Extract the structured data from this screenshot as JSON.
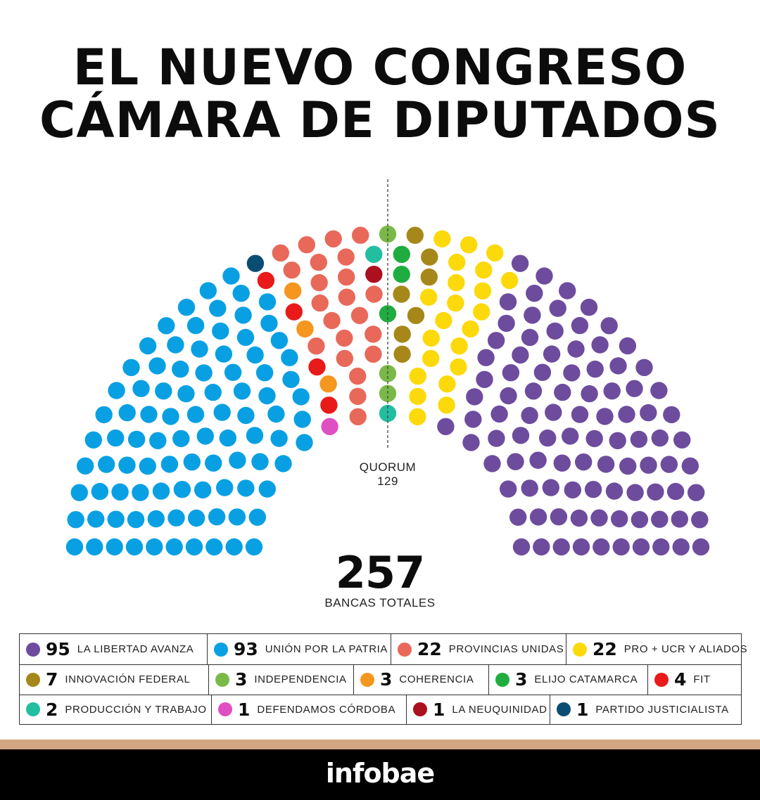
{
  "header": {
    "title_line1": "EL NUEVO CONGRESO",
    "title_line2": "CÁMARA DE DIPUTADOS"
  },
  "chart_data": {
    "type": "parliament",
    "total_seats": 257,
    "total_number": "257",
    "total_label": "BANCAS TOTALES",
    "quorum_label": "QUORUM",
    "quorum_value": "129",
    "parties": [
      {
        "name": "LA LIBERTAD AVANZA",
        "seats": 95,
        "color": "#6d4c9e"
      },
      {
        "name": "UNIÓN POR LA PATRIA",
        "seats": 93,
        "color": "#09a0e3"
      },
      {
        "name": "PROVINCIAS UNIDAS",
        "seats": 22,
        "color": "#e8695a"
      },
      {
        "name": "PRO + UCR Y ALIADOS",
        "seats": 22,
        "color": "#fcd90a"
      },
      {
        "name": "INNOVACIÓN FEDERAL",
        "seats": 7,
        "color": "#a6881a"
      },
      {
        "name": "INDEPENDENCIA",
        "seats": 3,
        "color": "#7ab948"
      },
      {
        "name": "COHERENCIA",
        "seats": 3,
        "color": "#f5961e"
      },
      {
        "name": "ELIJO CATAMARCA",
        "seats": 3,
        "color": "#20ad3f"
      },
      {
        "name": "FIT",
        "seats": 4,
        "color": "#e81a1a"
      },
      {
        "name": "PRODUCCIÓN Y TRABAJO",
        "seats": 2,
        "color": "#22bea0"
      },
      {
        "name": "DEFENDAMOS CÓRDOBA",
        "seats": 1,
        "color": "#de4fc4"
      },
      {
        "name": "LA NEUQUINIDAD",
        "seats": 1,
        "color": "#ac0f1e"
      },
      {
        "name": "PARTIDO JUSTICIALISTA",
        "seats": 1,
        "color": "#0a4d72"
      }
    ],
    "seat_order": [
      "UNIÓN POR LA PATRIA",
      "DEFENDAMOS CÓRDOBA",
      "PARTIDO JUSTICIALISTA",
      "FIT",
      "COHERENCIA",
      "PROVINCIAS UNIDAS",
      "LA NEUQUINIDAD",
      "PRODUCCIÓN Y TRABAJO",
      "INDEPENDENCIA",
      "ELIJO CATAMARCA",
      "INNOVACIÓN FEDERAL",
      "PRO + UCR Y ALIADOS",
      "LA LIBERTAD AVANZA"
    ]
  },
  "legend": {
    "row1": [
      {
        "num": "95",
        "label": "LA LIBERTAD AVANZA",
        "color": "#6d4c9e"
      },
      {
        "num": "93",
        "label": "UNIÓN POR LA PATRIA",
        "color": "#09a0e3"
      },
      {
        "num": "22",
        "label": "PROVINCIAS UNIDAS",
        "color": "#e8695a"
      },
      {
        "num": "22",
        "label": "PRO + UCR Y ALIADOS",
        "color": "#fcd90a"
      }
    ],
    "row2": [
      {
        "num": "7",
        "label": "INNOVACIÓN FEDERAL",
        "color": "#a6881a"
      },
      {
        "num": "3",
        "label": "INDEPENDENCIA",
        "color": "#7ab948"
      },
      {
        "num": "3",
        "label": "COHERENCIA",
        "color": "#f5961e"
      },
      {
        "num": "3",
        "label": "ELIJO CATAMARCA",
        "color": "#20ad3f"
      },
      {
        "num": "4",
        "label": "FIT",
        "color": "#e81a1a"
      }
    ],
    "row3": [
      {
        "num": "2",
        "label": "PRODUCCIÓN Y TRABAJO",
        "color": "#22bea0"
      },
      {
        "num": "1",
        "label": "DEFENDAMOS CÓRDOBA",
        "color": "#de4fc4"
      },
      {
        "num": "1",
        "label": "LA NEUQUINIDAD",
        "color": "#ac0f1e"
      },
      {
        "num": "1",
        "label": "PARTIDO JUSTICIALISTA",
        "color": "#0a4d72"
      }
    ]
  },
  "footer": {
    "brand": "infobae"
  }
}
